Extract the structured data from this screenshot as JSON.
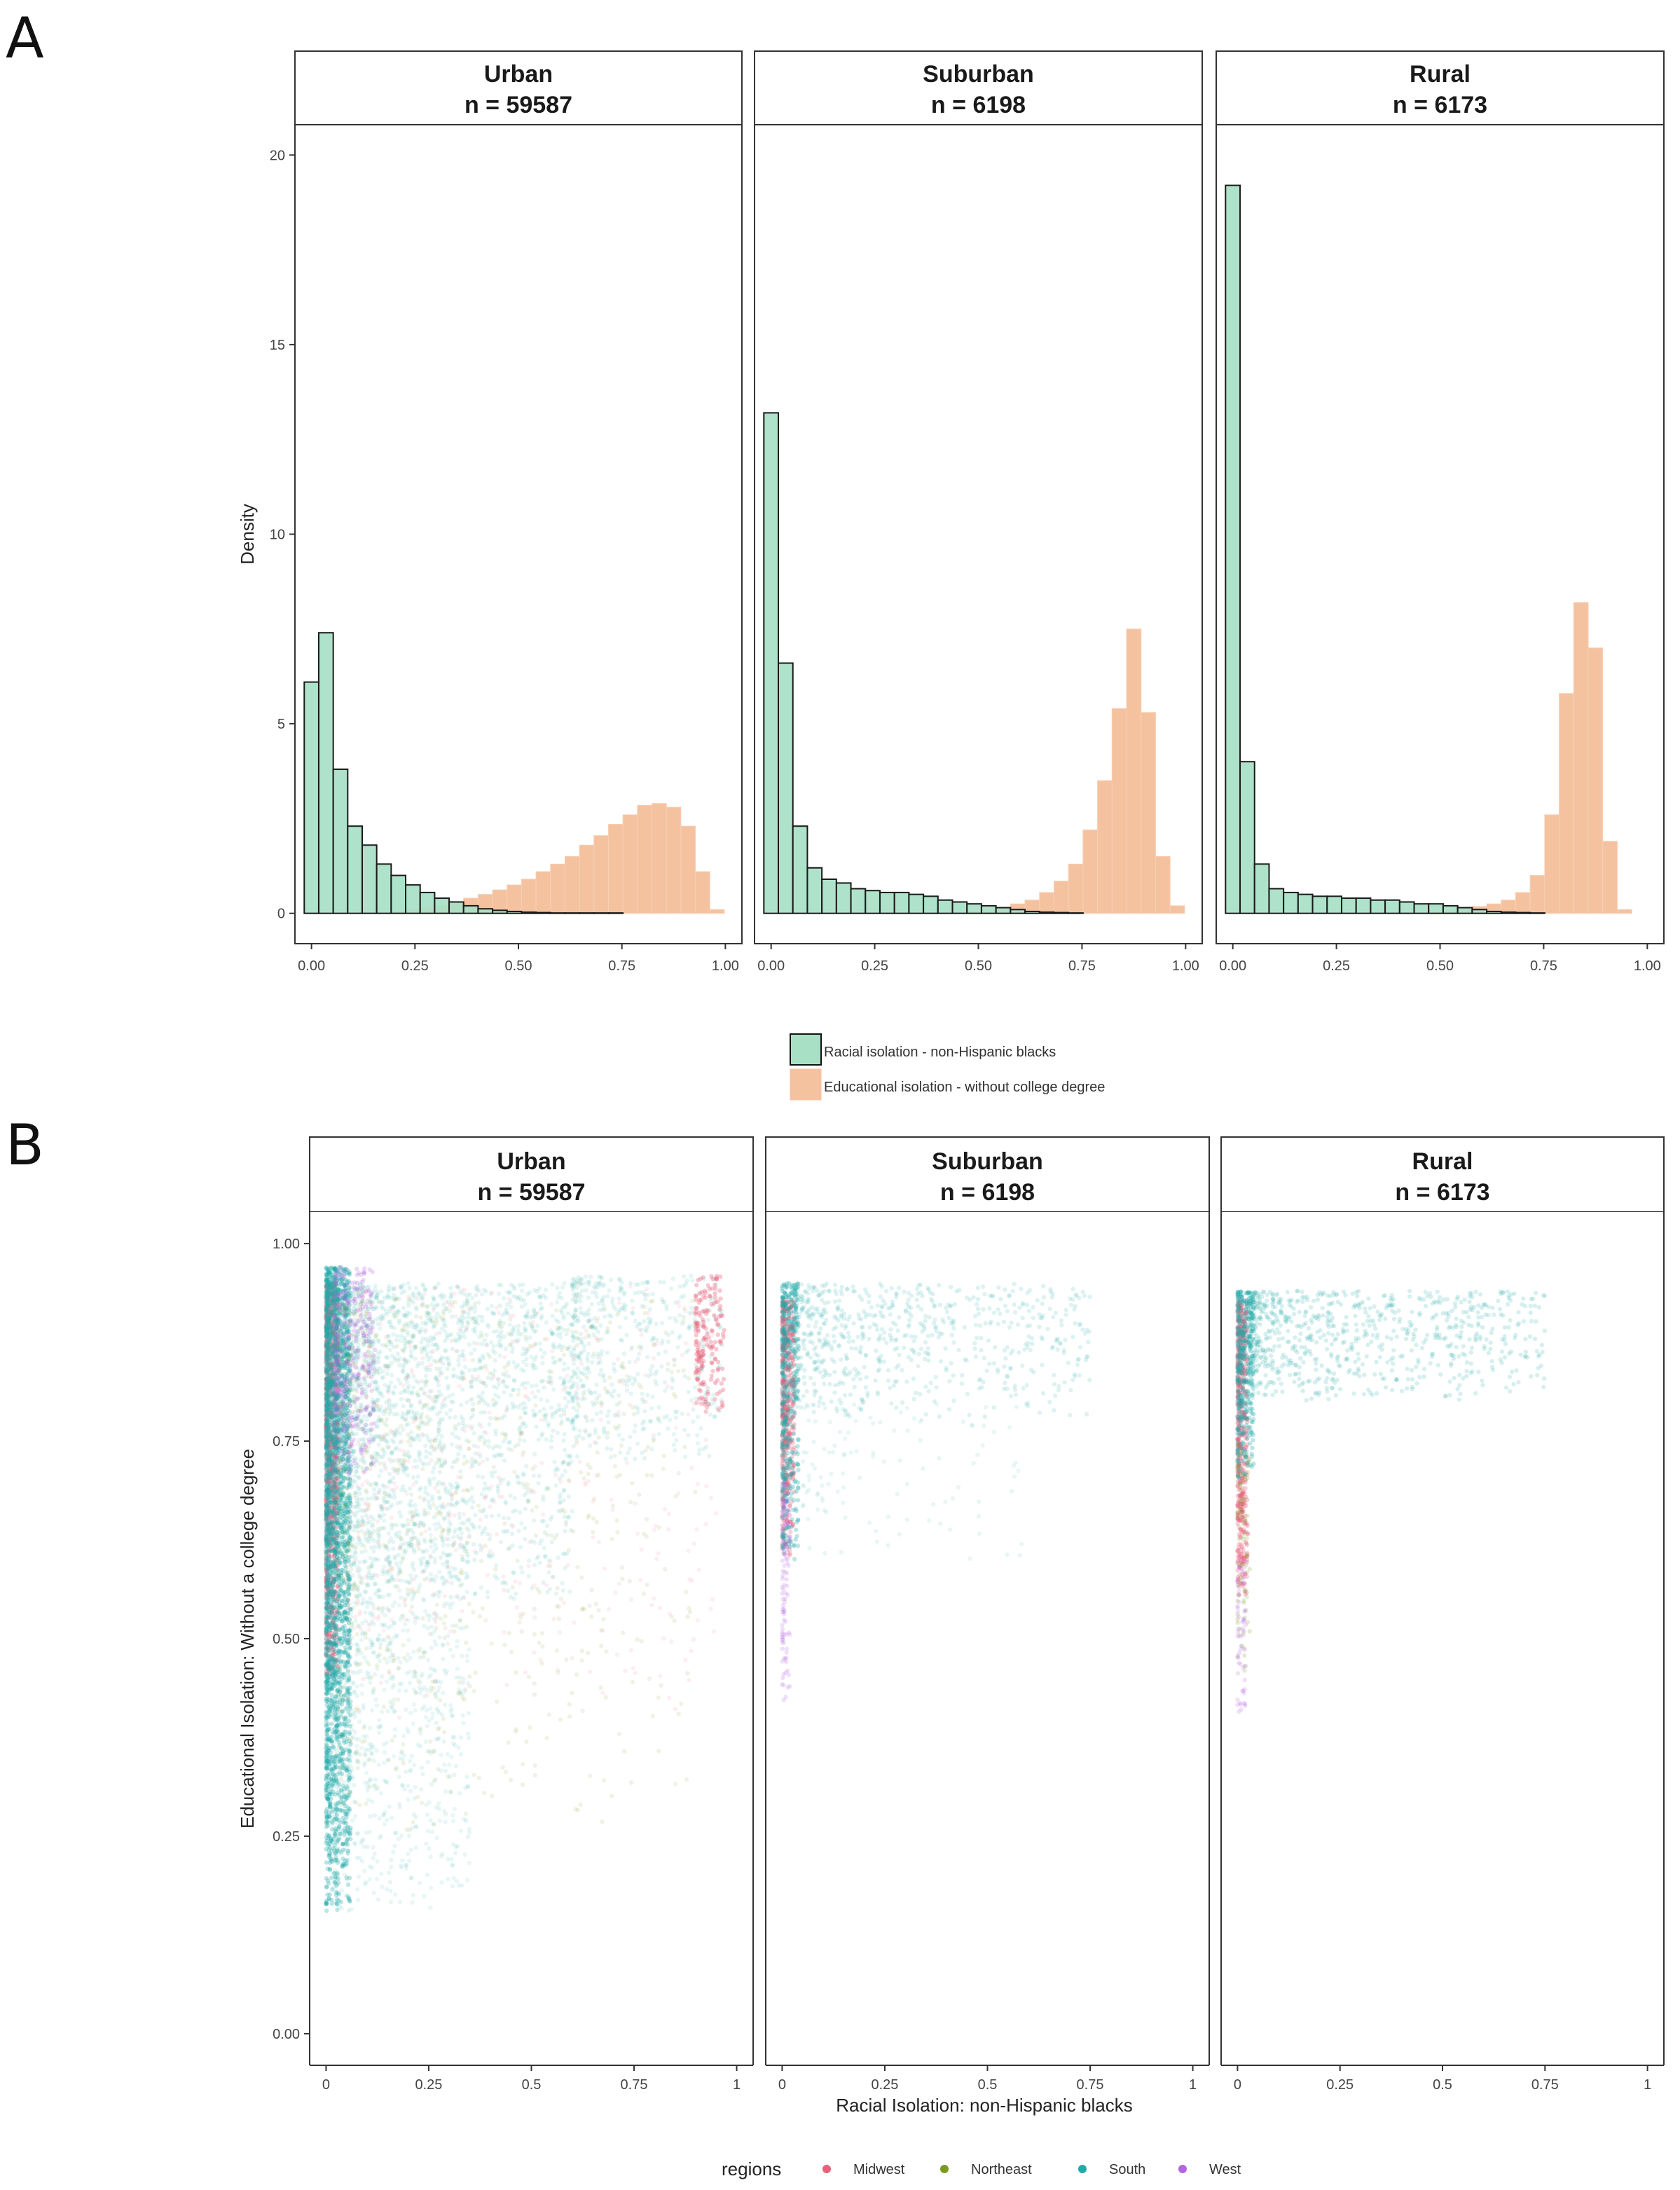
{
  "panel_labels": [
    "A",
    "B"
  ],
  "chart_data": [
    {
      "type": "histogram",
      "panel_label": "A",
      "ylabel": "Density",
      "xlabel": "",
      "xlim": [
        -0.04,
        1.04
      ],
      "ylim": [
        -0.8,
        20.8
      ],
      "x_ticks": [
        "0.00",
        "0.25",
        "0.50",
        "0.75",
        "1.00"
      ],
      "y_ticks": [
        "0",
        "5",
        "10",
        "15",
        "20"
      ],
      "grid": false,
      "legend_position": "bottom",
      "bin_width": 0.035,
      "series": [
        {
          "name": "Racial isolation - non-Hispanic blacks",
          "color": "#a8e0c6",
          "edge": "#1a1a1a"
        },
        {
          "name": "Educational isolation - without college degree",
          "color": "#f5c2a0",
          "edge": "#f5c2a0"
        }
      ],
      "facets": [
        {
          "title": "Urban",
          "subtitle": "n = 59587",
          "x_start": -0.0175,
          "racial": [
            6.1,
            7.4,
            3.8,
            2.3,
            1.8,
            1.3,
            1.0,
            0.75,
            0.55,
            0.4,
            0.3,
            0.2,
            0.12,
            0.08,
            0.05,
            0.03,
            0.02,
            0.01,
            0.01,
            0.01,
            0.01,
            0.01,
            0.0,
            0.0,
            0.0,
            0.0,
            0.0,
            0.0,
            0.0
          ],
          "educational": [
            0.0,
            0.0,
            0.0,
            0.0,
            0.0,
            0.0,
            0.05,
            0.1,
            0.15,
            0.2,
            0.3,
            0.4,
            0.5,
            0.62,
            0.75,
            0.9,
            1.1,
            1.3,
            1.5,
            1.8,
            2.05,
            2.35,
            2.6,
            2.85,
            2.9,
            2.8,
            2.3,
            1.1,
            0.1
          ]
        },
        {
          "title": "Suburban",
          "subtitle": "n = 6198",
          "x_start": -0.0175,
          "racial": [
            13.2,
            6.6,
            2.3,
            1.2,
            0.9,
            0.8,
            0.65,
            0.6,
            0.55,
            0.55,
            0.5,
            0.45,
            0.35,
            0.3,
            0.25,
            0.2,
            0.15,
            0.1,
            0.05,
            0.03,
            0.02,
            0.01,
            0.0,
            0.0,
            0.0,
            0.0,
            0.0,
            0.0,
            0.0
          ],
          "educational": [
            0.0,
            0.0,
            0.0,
            0.0,
            0.0,
            0.0,
            0.0,
            0.0,
            0.0,
            0.0,
            0.0,
            0.0,
            0.0,
            0.0,
            0.05,
            0.1,
            0.15,
            0.25,
            0.35,
            0.55,
            0.85,
            1.3,
            2.2,
            3.5,
            5.4,
            7.5,
            5.3,
            1.5,
            0.2
          ]
        },
        {
          "title": "Rural",
          "subtitle": "n = 6173",
          "x_start": -0.0175,
          "racial": [
            19.2,
            4.0,
            1.3,
            0.65,
            0.55,
            0.5,
            0.45,
            0.45,
            0.4,
            0.4,
            0.35,
            0.35,
            0.3,
            0.25,
            0.25,
            0.2,
            0.15,
            0.1,
            0.05,
            0.03,
            0.02,
            0.01,
            0.0,
            0.0,
            0.0,
            0.0,
            0.0,
            0.0,
            0.0
          ],
          "educational": [
            0.0,
            0.0,
            0.0,
            0.0,
            0.0,
            0.0,
            0.0,
            0.0,
            0.0,
            0.0,
            0.0,
            0.0,
            0.0,
            0.0,
            0.03,
            0.06,
            0.1,
            0.18,
            0.25,
            0.35,
            0.55,
            1.0,
            2.6,
            5.8,
            8.2,
            7.0,
            1.9,
            0.1,
            0.0
          ]
        }
      ]
    },
    {
      "type": "scatter",
      "panel_label": "B",
      "xlabel": "Racial Isolation: non-Hispanic blacks",
      "ylabel": "Educational Isolation: Without a college degree",
      "xlim": [
        -0.04,
        1.04
      ],
      "ylim": [
        -0.04,
        1.04
      ],
      "x_ticks": [
        "0",
        "0.25",
        "0.5",
        "0.75",
        "1"
      ],
      "y_ticks": [
        "0.00",
        "0.25",
        "0.50",
        "0.75",
        "1.00"
      ],
      "grid": false,
      "legend_position": "bottom",
      "legend_title": "regions",
      "regions": [
        {
          "name": "Midwest",
          "color": "#e8607a"
        },
        {
          "name": "Northeast",
          "color": "#7a9a20"
        },
        {
          "name": "South",
          "color": "#22aaa8"
        },
        {
          "name": "West",
          "color": "#b266e0"
        }
      ],
      "facets": [
        {
          "title": "Urban",
          "subtitle": "n = 59587",
          "clusters": [
            {
              "region": 0,
              "count": 900,
              "x_range": [
                0,
                0.03
              ],
              "y_range": [
                0.45,
                0.95
              ],
              "alpha": 0.35
            },
            {
              "region": 2,
              "count": 2400,
              "x_range": [
                0,
                0.06
              ],
              "y_range": [
                0.15,
                0.97
              ],
              "alpha": 0.3
            },
            {
              "region": 3,
              "count": 400,
              "x_range": [
                0.02,
                0.12
              ],
              "y_range": [
                0.7,
                0.97
              ],
              "alpha": 0.25
            },
            {
              "region": 2,
              "count": 2200,
              "x_range": [
                0.02,
                0.6
              ],
              "y_range": [
                0.55,
                0.95
              ],
              "alpha": 0.12
            },
            {
              "region": 2,
              "count": 1000,
              "x_range": [
                0.02,
                0.35
              ],
              "y_range": [
                0.15,
                0.65
              ],
              "alpha": 0.1
            },
            {
              "region": 1,
              "count": 700,
              "x_range": [
                0.03,
                0.9
              ],
              "y_range": [
                0.25,
                0.93
              ],
              "alpha": 0.12
            },
            {
              "region": 0,
              "count": 500,
              "x_range": [
                0.05,
                0.95
              ],
              "y_range": [
                0.4,
                0.95
              ],
              "alpha": 0.1
            },
            {
              "region": 2,
              "count": 500,
              "x_range": [
                0.6,
                0.97
              ],
              "y_range": [
                0.72,
                0.96
              ],
              "alpha": 0.12
            },
            {
              "region": 0,
              "count": 180,
              "x_range": [
                0.9,
                0.97
              ],
              "y_range": [
                0.78,
                0.96
              ],
              "alpha": 0.35
            }
          ]
        },
        {
          "title": "Suburban",
          "subtitle": "n = 6198",
          "clusters": [
            {
              "region": 0,
              "count": 500,
              "x_range": [
                0,
                0.03
              ],
              "y_range": [
                0.6,
                0.93
              ],
              "alpha": 0.3
            },
            {
              "region": 2,
              "count": 450,
              "x_range": [
                0,
                0.04
              ],
              "y_range": [
                0.6,
                0.95
              ],
              "alpha": 0.3
            },
            {
              "region": 3,
              "count": 120,
              "x_range": [
                0,
                0.02
              ],
              "y_range": [
                0.42,
                0.7
              ],
              "alpha": 0.2
            },
            {
              "region": 2,
              "count": 700,
              "x_range": [
                0.03,
                0.75
              ],
              "y_range": [
                0.78,
                0.95
              ],
              "alpha": 0.15
            },
            {
              "region": 2,
              "count": 120,
              "x_range": [
                0.05,
                0.6
              ],
              "y_range": [
                0.6,
                0.8
              ],
              "alpha": 0.1
            }
          ]
        },
        {
          "title": "Rural",
          "subtitle": "n = 6173",
          "clusters": [
            {
              "region": 0,
              "count": 550,
              "x_range": [
                0,
                0.025
              ],
              "y_range": [
                0.55,
                0.93
              ],
              "alpha": 0.3
            },
            {
              "region": 2,
              "count": 400,
              "x_range": [
                0,
                0.04
              ],
              "y_range": [
                0.7,
                0.94
              ],
              "alpha": 0.3
            },
            {
              "region": 1,
              "count": 80,
              "x_range": [
                0,
                0.03
              ],
              "y_range": [
                0.45,
                0.75
              ],
              "alpha": 0.2
            },
            {
              "region": 3,
              "count": 60,
              "x_range": [
                0,
                0.02
              ],
              "y_range": [
                0.4,
                0.6
              ],
              "alpha": 0.2
            },
            {
              "region": 2,
              "count": 800,
              "x_range": [
                0.03,
                0.75
              ],
              "y_range": [
                0.8,
                0.94
              ],
              "alpha": 0.18
            }
          ]
        }
      ]
    }
  ]
}
